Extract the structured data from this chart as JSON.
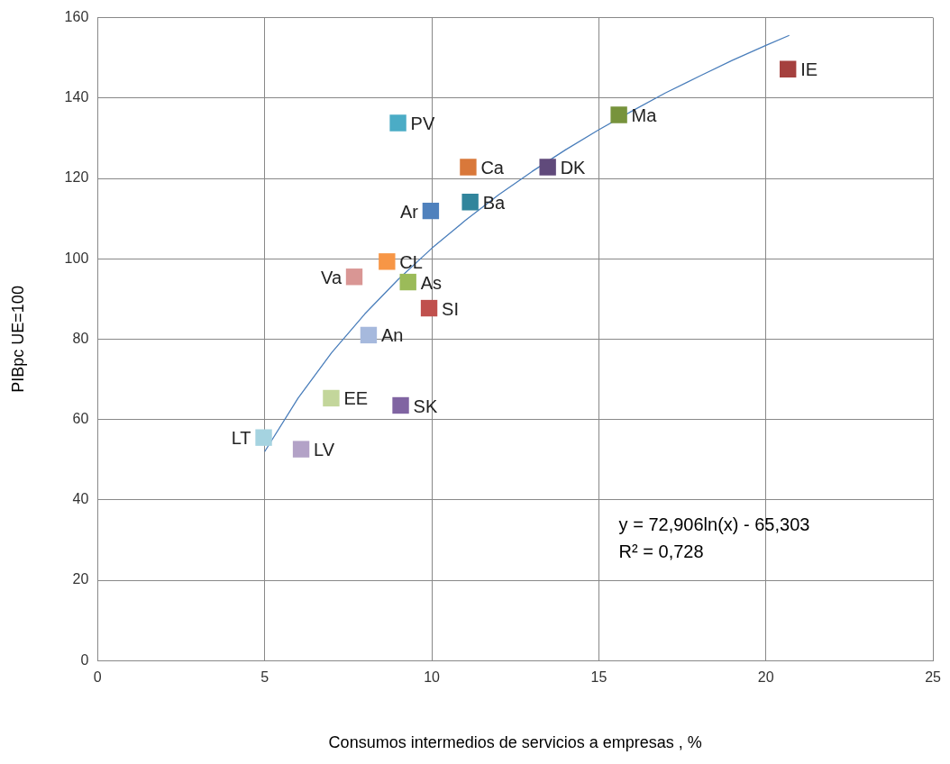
{
  "chart_data": {
    "type": "scatter",
    "xlabel": "Consumos intermedios de servicios a empresas , %",
    "ylabel": "PIBpc UE=100",
    "xlim": [
      0,
      25
    ],
    "xticks": [
      0,
      5,
      10,
      15,
      20,
      25
    ],
    "ylim": [
      0,
      160
    ],
    "yticks": [
      0,
      20,
      40,
      60,
      80,
      100,
      120,
      140,
      160
    ],
    "grid": true,
    "legend": false,
    "marker": "square",
    "annotations": [
      "y = 72,906ln(x) - 65,303",
      "R² = 0,728"
    ],
    "series": [
      {
        "name": "PV",
        "color": "#4bacc6",
        "x": [
          8.99
        ],
        "values": [
          133.8
        ]
      },
      {
        "name": "Ca",
        "color": "#d9783a",
        "x": [
          11.09
        ],
        "values": [
          122.8
        ]
      },
      {
        "name": "DK",
        "color": "#604a7b",
        "x": [
          13.47
        ],
        "values": [
          122.8
        ]
      },
      {
        "name": "Ma",
        "color": "#77933c",
        "x": [
          15.6
        ],
        "values": [
          135.8
        ]
      },
      {
        "name": "IE",
        "color": "#a5403e",
        "x": [
          20.66
        ],
        "values": [
          147.2
        ]
      },
      {
        "name": "Ar",
        "color": "#4f81bd",
        "x": [
          9.97
        ],
        "values": [
          111.9
        ]
      },
      {
        "name": "Ba",
        "color": "#31859c",
        "x": [
          11.15
        ],
        "values": [
          114.1
        ]
      },
      {
        "name": "CL",
        "color": "#f79646",
        "x": [
          8.66
        ],
        "values": [
          99.3
        ]
      },
      {
        "name": "Va",
        "color": "#d99694",
        "x": [
          7.68
        ],
        "values": [
          95.5
        ]
      },
      {
        "name": "As",
        "color": "#9bbb59",
        "x": [
          9.29
        ],
        "values": [
          94.2
        ]
      },
      {
        "name": "SI",
        "color": "#c0504d",
        "x": [
          9.92
        ],
        "values": [
          87.7
        ]
      },
      {
        "name": "An",
        "color": "#a6b9dd",
        "x": [
          8.11
        ],
        "values": [
          81.0
        ]
      },
      {
        "name": "EE",
        "color": "#c3d69b",
        "x": [
          6.99
        ],
        "values": [
          65.3
        ]
      },
      {
        "name": "SK",
        "color": "#8064a2",
        "x": [
          9.07
        ],
        "values": [
          63.5
        ]
      },
      {
        "name": "LT",
        "color": "#a5d3e0",
        "x": [
          4.97
        ],
        "values": [
          55.5
        ]
      },
      {
        "name": "LV",
        "color": "#b3a2c7",
        "x": [
          6.09
        ],
        "values": [
          52.6
        ]
      },
      {
        "type": "line",
        "color": "#4a7ebb",
        "marker": "none",
        "x": [
          5,
          6,
          7,
          8,
          9,
          10,
          11,
          12,
          13,
          14,
          15,
          16,
          17,
          18,
          19,
          20,
          20.7
        ],
        "values": [
          52.0,
          65.3,
          76.6,
          86.3,
          94.9,
          102.6,
          109.5,
          115.9,
          121.7,
          127.1,
          132.1,
          136.8,
          141.3,
          145.4,
          149.4,
          153.1,
          155.6
        ]
      }
    ]
  }
}
